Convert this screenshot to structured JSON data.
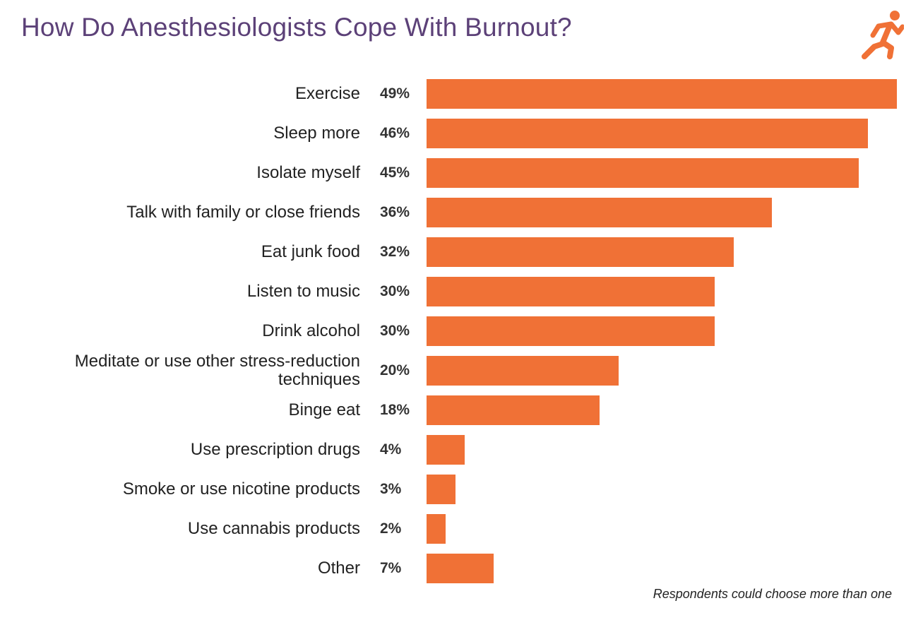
{
  "chart_data": {
    "type": "bar",
    "orientation": "horizontal",
    "title": "How Do Anesthesiologists Cope With Burnout?",
    "categories": [
      "Exercise",
      "Sleep more",
      "Isolate myself",
      "Talk with family or close friends",
      "Eat junk food",
      "Listen to music",
      "Drink alcohol",
      "Meditate or use other stress-reduction techniques",
      "Binge eat",
      "Use prescription drugs",
      "Smoke or use nicotine products",
      "Use cannabis products",
      "Other"
    ],
    "values": [
      49,
      46,
      45,
      36,
      32,
      30,
      30,
      20,
      18,
      4,
      3,
      2,
      7
    ],
    "data_labels": [
      "49%",
      "46%",
      "45%",
      "36%",
      "32%",
      "30%",
      "30%",
      "20%",
      "18%",
      "4%",
      "3%",
      "2%",
      "7%"
    ],
    "unit": "%",
    "xlim": [
      0,
      49
    ],
    "grid": false,
    "bar_color": "#f07136",
    "annotation": "Respondents could choose more than one"
  },
  "icon": "running-person-icon",
  "title_color": "#5c4178"
}
